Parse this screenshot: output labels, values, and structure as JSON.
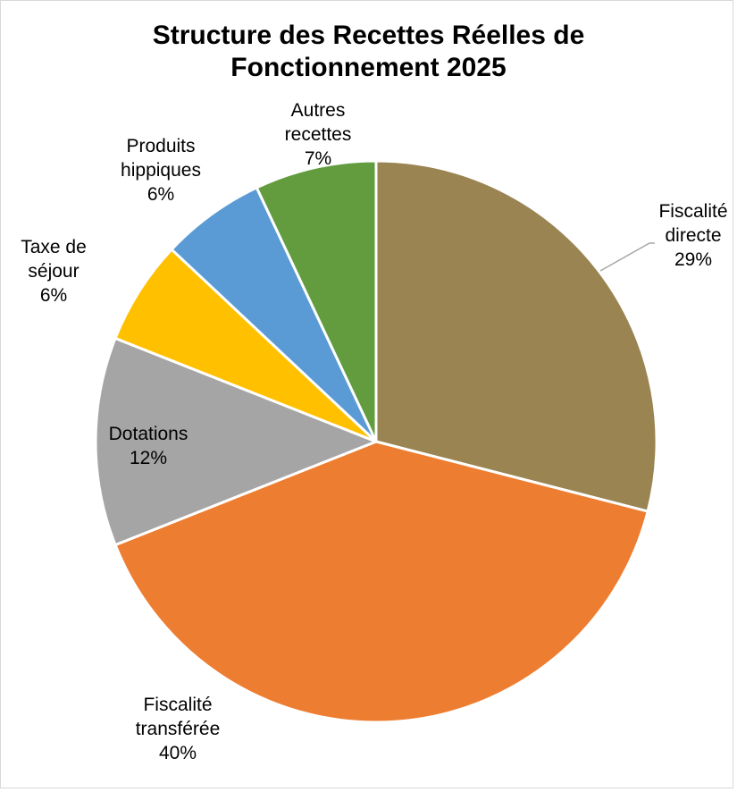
{
  "chart_data": {
    "type": "pie",
    "title_lines": [
      "Structure des Recettes Réelles de",
      "Fonctionnement 2025"
    ],
    "slices": [
      {
        "name_lines": [
          "Fiscalité",
          "directe"
        ],
        "value": 29,
        "value_label": "29%",
        "color": "#9a8451"
      },
      {
        "name_lines": [
          "Fiscalité",
          "transférée"
        ],
        "value": 40,
        "value_label": "40%",
        "color": "#ed7d31"
      },
      {
        "name_lines": [
          "Dotations"
        ],
        "value": 12,
        "value_label": "12%",
        "color": "#a5a5a5"
      },
      {
        "name_lines": [
          "Taxe de",
          "séjour"
        ],
        "value": 6,
        "value_label": "6%",
        "color": "#ffc000"
      },
      {
        "name_lines": [
          "Produits",
          "hippiques"
        ],
        "value": 6,
        "value_label": "6%",
        "color": "#5b9bd5"
      },
      {
        "name_lines": [
          "Autres",
          "recettes"
        ],
        "value": 7,
        "value_label": "7%",
        "color": "#629c3e"
      }
    ],
    "start_angle_deg": 0,
    "direction": "clockwise",
    "legend": "none",
    "label_position": "outside"
  }
}
